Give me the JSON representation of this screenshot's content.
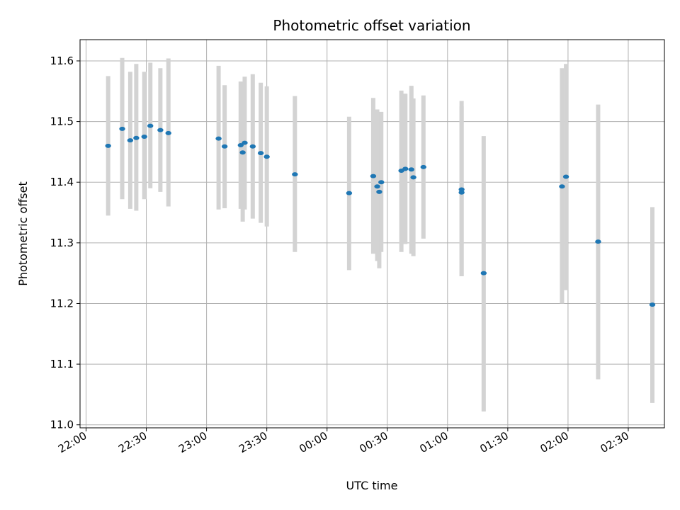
{
  "chart_data": {
    "type": "scatter",
    "title": "Photometric offset variation",
    "xlabel": "UTC time",
    "ylabel": "Photometric offset",
    "x_ticks": [
      "22:00",
      "22:30",
      "23:00",
      "23:30",
      "00:00",
      "00:30",
      "01:00",
      "01:30",
      "02:00",
      "02:30"
    ],
    "y_ticks": [
      "11.0",
      "11.1",
      "11.2",
      "11.3",
      "11.4",
      "11.5",
      "11.6"
    ],
    "xlim": [
      "21:57",
      "02:48"
    ],
    "ylim": [
      10.995,
      11.635
    ],
    "grid": true,
    "point_color": "#1f77b4",
    "errorbar_color": "#d3d3d3",
    "series": [
      {
        "points": [
          {
            "x": "22:11",
            "y": 11.46,
            "low": 11.345,
            "high": 11.575
          },
          {
            "x": "22:18",
            "y": 11.488,
            "low": 11.372,
            "high": 11.605
          },
          {
            "x": "22:22",
            "y": 11.469,
            "low": 11.356,
            "high": 11.582
          },
          {
            "x": "22:25",
            "y": 11.473,
            "low": 11.353,
            "high": 11.595
          },
          {
            "x": "22:29",
            "y": 11.475,
            "low": 11.372,
            "high": 11.582
          },
          {
            "x": "22:32",
            "y": 11.493,
            "low": 11.39,
            "high": 11.597
          },
          {
            "x": "22:37",
            "y": 11.486,
            "low": 11.384,
            "high": 11.588
          },
          {
            "x": "22:41",
            "y": 11.481,
            "low": 11.36,
            "high": 11.604
          },
          {
            "x": "23:06",
            "y": 11.472,
            "low": 11.355,
            "high": 11.592
          },
          {
            "x": "23:09",
            "y": 11.459,
            "low": 11.357,
            "high": 11.56
          },
          {
            "x": "23:17",
            "y": 11.461,
            "low": 11.356,
            "high": 11.566
          },
          {
            "x": "23:18",
            "y": 11.449,
            "low": 11.335,
            "high": 11.562
          },
          {
            "x": "23:19",
            "y": 11.465,
            "low": 11.355,
            "high": 11.574
          },
          {
            "x": "23:23",
            "y": 11.459,
            "low": 11.34,
            "high": 11.578
          },
          {
            "x": "23:27",
            "y": 11.448,
            "low": 11.333,
            "high": 11.564
          },
          {
            "x": "23:30",
            "y": 11.442,
            "low": 11.327,
            "high": 11.558
          },
          {
            "x": "23:44",
            "y": 11.413,
            "low": 11.285,
            "high": 11.542
          },
          {
            "x": "00:11",
            "y": 11.382,
            "low": 11.255,
            "high": 11.508
          },
          {
            "x": "00:23",
            "y": 11.41,
            "low": 11.282,
            "high": 11.539
          },
          {
            "x": "00:25",
            "y": 11.393,
            "low": 11.27,
            "high": 11.52
          },
          {
            "x": "00:26",
            "y": 11.384,
            "low": 11.258,
            "high": 11.513
          },
          {
            "x": "00:27",
            "y": 11.4,
            "low": 11.285,
            "high": 11.516
          },
          {
            "x": "00:37",
            "y": 11.419,
            "low": 11.285,
            "high": 11.551
          },
          {
            "x": "00:39",
            "y": 11.422,
            "low": 11.298,
            "high": 11.546
          },
          {
            "x": "00:42",
            "y": 11.421,
            "low": 11.282,
            "high": 11.559
          },
          {
            "x": "00:43",
            "y": 11.408,
            "low": 11.278,
            "high": 11.538
          },
          {
            "x": "00:48",
            "y": 11.425,
            "low": 11.307,
            "high": 11.543
          },
          {
            "x": "01:07",
            "y": 11.388,
            "low": 11.245,
            "high": 11.534
          },
          {
            "x": "01:07",
            "y": 11.383,
            "low": 11.245,
            "high": 11.525
          },
          {
            "x": "01:18",
            "y": 11.25,
            "low": 11.022,
            "high": 11.476
          },
          {
            "x": "01:57",
            "y": 11.393,
            "low": 11.2,
            "high": 11.588
          },
          {
            "x": "01:59",
            "y": 11.409,
            "low": 11.222,
            "high": 11.595
          },
          {
            "x": "02:15",
            "y": 11.302,
            "low": 11.075,
            "high": 11.528
          },
          {
            "x": "02:42",
            "y": 11.198,
            "low": 11.036,
            "high": 11.359
          }
        ]
      }
    ]
  }
}
